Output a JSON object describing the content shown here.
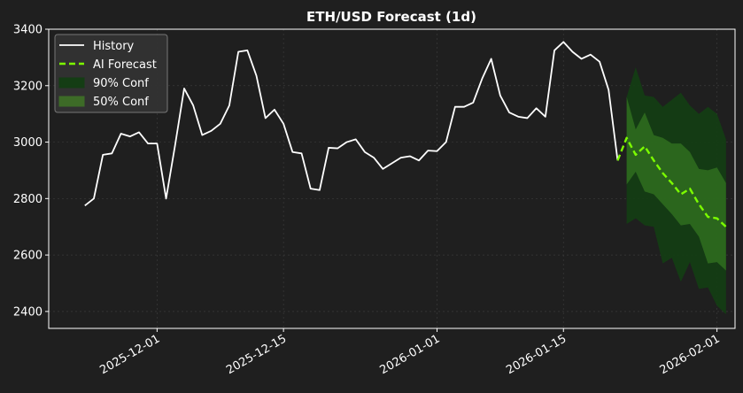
{
  "colors": {
    "background": "#1f1f1f",
    "history": "#ffffff",
    "forecast": "#7cfc00",
    "conf90": "#143d14",
    "conf50": "#2f6e1f",
    "grid": "#3a3a3a",
    "axis": "#ffffff"
  },
  "chart_data": {
    "type": "line",
    "title": "ETH/USD Forecast (1d)",
    "xlabel": "",
    "ylabel": "",
    "xlim": [
      "2025-11-19",
      "2026-02-03"
    ],
    "ylim": [
      2340,
      3400
    ],
    "grid": true,
    "legend_position": "top-left",
    "x_ticks": [
      "2025-12-01",
      "2025-12-15",
      "2026-01-01",
      "2026-01-15",
      "2026-02-01"
    ],
    "y_ticks": [
      2400,
      2600,
      2800,
      3000,
      3200,
      3400
    ],
    "legend": [
      {
        "label": "History",
        "kind": "line-solid",
        "color": "#ffffff"
      },
      {
        "label": "AI Forecast",
        "kind": "line-dashed",
        "color": "#7cfc00"
      },
      {
        "label": "90% Conf",
        "kind": "patch",
        "color": "#143d14"
      },
      {
        "label": "50% Conf",
        "kind": "patch",
        "color": "#3d6b27"
      }
    ],
    "series": [
      {
        "name": "History",
        "style": "solid",
        "x": [
          "2025-11-23",
          "2025-11-24",
          "2025-11-25",
          "2025-11-26",
          "2025-11-27",
          "2025-11-28",
          "2025-11-29",
          "2025-11-30",
          "2025-12-01",
          "2025-12-02",
          "2025-12-03",
          "2025-12-04",
          "2025-12-05",
          "2025-12-06",
          "2025-12-07",
          "2025-12-08",
          "2025-12-09",
          "2025-12-10",
          "2025-12-11",
          "2025-12-12",
          "2025-12-13",
          "2025-12-14",
          "2025-12-15",
          "2025-12-16",
          "2025-12-17",
          "2025-12-18",
          "2025-12-19",
          "2025-12-20",
          "2025-12-21",
          "2025-12-22",
          "2025-12-23",
          "2025-12-24",
          "2025-12-25",
          "2025-12-26",
          "2025-12-27",
          "2025-12-28",
          "2025-12-29",
          "2025-12-30",
          "2025-12-31",
          "2026-01-01",
          "2026-01-02",
          "2026-01-03",
          "2026-01-04",
          "2026-01-05",
          "2026-01-06",
          "2026-01-07",
          "2026-01-08",
          "2026-01-09",
          "2026-01-10",
          "2026-01-11",
          "2026-01-12",
          "2026-01-13",
          "2026-01-14",
          "2026-01-15",
          "2026-01-16",
          "2026-01-17",
          "2026-01-18",
          "2026-01-19",
          "2026-01-20",
          "2026-01-21"
        ],
        "values": [
          2775,
          2800,
          2955,
          2960,
          3030,
          3020,
          3035,
          2995,
          2995,
          2800,
          2990,
          3190,
          3130,
          3025,
          3040,
          3065,
          3130,
          3320,
          3325,
          3235,
          3085,
          3115,
          3065,
          2965,
          2960,
          2835,
          2830,
          2980,
          2978,
          3000,
          3010,
          2965,
          2945,
          2905,
          2925,
          2945,
          2950,
          2935,
          2970,
          2968,
          3000,
          3125,
          3125,
          3140,
          3225,
          3295,
          3165,
          3105,
          3090,
          3085,
          3120,
          3090,
          3325,
          3355,
          3320,
          3295,
          3310,
          3285,
          3185,
          2935
        ]
      },
      {
        "name": "AI Forecast",
        "style": "dashed",
        "x": [
          "2026-01-21",
          "2026-01-22",
          "2026-01-23",
          "2026-01-24",
          "2026-01-25",
          "2026-01-26",
          "2026-01-27",
          "2026-01-28",
          "2026-01-29",
          "2026-01-30",
          "2026-01-31",
          "2026-02-01",
          "2026-02-02"
        ],
        "values": [
          2935,
          3015,
          2955,
          2985,
          2935,
          2890,
          2855,
          2815,
          2835,
          2780,
          2735,
          2730,
          2700
        ]
      },
      {
        "name": "90% Conf",
        "type": "band",
        "x": [
          "2026-01-22",
          "2026-01-23",
          "2026-01-24",
          "2026-01-25",
          "2026-01-26",
          "2026-01-27",
          "2026-01-28",
          "2026-01-29",
          "2026-01-30",
          "2026-01-31",
          "2026-02-01",
          "2026-02-02"
        ],
        "lower": [
          2710,
          2730,
          2705,
          2700,
          2570,
          2590,
          2505,
          2575,
          2480,
          2485,
          2420,
          2390
        ],
        "upper": [
          3160,
          3265,
          3165,
          3160,
          3125,
          3150,
          3175,
          3130,
          3100,
          3125,
          3100,
          3010
        ]
      },
      {
        "name": "50% Conf",
        "type": "band",
        "x": [
          "2026-01-22",
          "2026-01-23",
          "2026-01-24",
          "2026-01-25",
          "2026-01-26",
          "2026-01-27",
          "2026-01-28",
          "2026-01-29",
          "2026-01-30",
          "2026-01-31",
          "2026-02-01",
          "2026-02-02"
        ],
        "lower": [
          2850,
          2895,
          2825,
          2815,
          2780,
          2745,
          2705,
          2710,
          2665,
          2570,
          2575,
          2545
        ],
        "upper": [
          3160,
          3045,
          3105,
          3025,
          3015,
          2995,
          2995,
          2965,
          2905,
          2900,
          2910,
          2855
        ]
      }
    ]
  }
}
